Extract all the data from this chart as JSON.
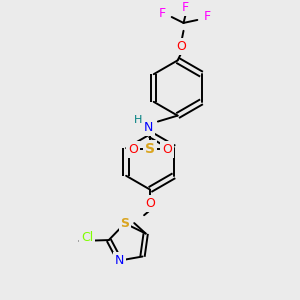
{
  "bg_color": "#ebebeb",
  "bond_color": "#000000",
  "atom_colors": {
    "F": "#ff00ff",
    "O": "#ff0000",
    "N": "#0000ff",
    "H": "#008080",
    "S_sulfonyl": "#daa520",
    "S_thiazole": "#daa520",
    "Cl": "#7fff00",
    "C": "#000000"
  },
  "figsize": [
    3.0,
    3.0
  ],
  "dpi": 100,
  "lw": 1.4,
  "dbl_off": 2.8
}
